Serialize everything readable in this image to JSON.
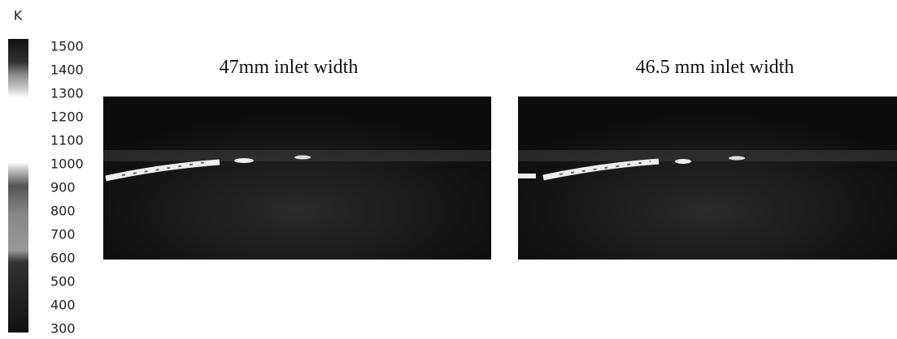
{
  "colorbar": {
    "unit": "K",
    "ticks": [
      1500,
      1400,
      1300,
      1200,
      1100,
      1000,
      900,
      800,
      700,
      600,
      500,
      400,
      300
    ]
  },
  "panels": [
    {
      "title": "47mm inlet width"
    },
    {
      "title": "46.5 mm inlet width"
    }
  ]
}
